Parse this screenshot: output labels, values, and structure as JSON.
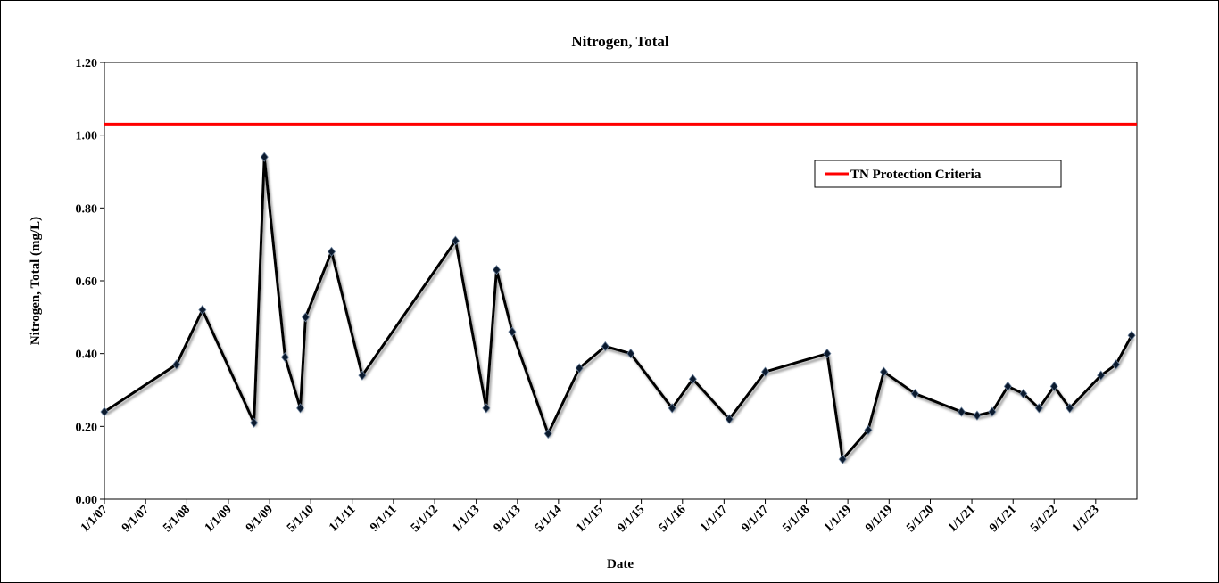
{
  "chart_data": {
    "type": "line",
    "title": "Nitrogen, Total",
    "xlabel": "Date",
    "ylabel": "Nitrogen, Total (mg/L)",
    "x": [
      "2007-01-01",
      "2008-03-01",
      "2008-08-01",
      "2009-06-01",
      "2009-08-01",
      "2009-12-01",
      "2010-03-01",
      "2010-04-01",
      "2010-09-01",
      "2011-03-01",
      "2012-09-01",
      "2013-03-01",
      "2013-05-01",
      "2013-08-01",
      "2014-03-01",
      "2014-09-01",
      "2015-02-01",
      "2015-07-01",
      "2016-03-01",
      "2016-07-01",
      "2017-02-01",
      "2017-09-01",
      "2018-09-01",
      "2018-12-01",
      "2019-05-01",
      "2019-08-01",
      "2020-02-01",
      "2020-11-01",
      "2021-02-01",
      "2021-05-01",
      "2021-08-01",
      "2021-11-01",
      "2022-02-01",
      "2022-05-01",
      "2022-08-01",
      "2023-02-01",
      "2023-05-01",
      "2023-08-01"
    ],
    "series": [
      {
        "color": "#000000",
        "values": [
          0.24,
          0.37,
          0.52,
          0.21,
          0.94,
          0.39,
          0.25,
          0.5,
          0.68,
          0.34,
          0.71,
          0.25,
          0.63,
          0.46,
          0.18,
          0.36,
          0.42,
          0.4,
          0.25,
          0.33,
          0.22,
          0.35,
          0.4,
          0.11,
          0.19,
          0.35,
          0.29,
          0.24,
          0.23,
          0.24,
          0.31,
          0.29,
          0.25,
          0.31,
          0.25,
          0.34,
          0.37,
          0.45
        ]
      }
    ],
    "reference_lines": [
      {
        "name": "TN Protection Criteria",
        "value": 1.03,
        "color": "#ff0000"
      }
    ],
    "legend": "upper right",
    "xlim": [
      "2007-01-01",
      "2023-09-01"
    ],
    "xticks": [
      {
        "value": "2007-01-01",
        "label": "1/1/07"
      },
      {
        "value": "2007-09-01",
        "label": "9/1/07"
      },
      {
        "value": "2008-05-01",
        "label": "5/1/08"
      },
      {
        "value": "2009-01-01",
        "label": "1/1/09"
      },
      {
        "value": "2009-09-01",
        "label": "9/1/09"
      },
      {
        "value": "2010-05-01",
        "label": "5/1/10"
      },
      {
        "value": "2011-01-01",
        "label": "1/1/11"
      },
      {
        "value": "2011-09-01",
        "label": "9/1/11"
      },
      {
        "value": "2012-05-01",
        "label": "5/1/12"
      },
      {
        "value": "2013-01-01",
        "label": "1/1/13"
      },
      {
        "value": "2013-09-01",
        "label": "9/1/13"
      },
      {
        "value": "2014-05-01",
        "label": "5/1/14"
      },
      {
        "value": "2015-01-01",
        "label": "1/1/15"
      },
      {
        "value": "2015-09-01",
        "label": "9/1/15"
      },
      {
        "value": "2016-05-01",
        "label": "5/1/16"
      },
      {
        "value": "2017-01-01",
        "label": "1/1/17"
      },
      {
        "value": "2017-09-01",
        "label": "9/1/17"
      },
      {
        "value": "2018-05-01",
        "label": "5/1/18"
      },
      {
        "value": "2019-01-01",
        "label": "1/1/19"
      },
      {
        "value": "2019-09-01",
        "label": "9/1/19"
      },
      {
        "value": "2020-05-01",
        "label": "5/1/20"
      },
      {
        "value": "2021-01-01",
        "label": "1/1/21"
      },
      {
        "value": "2021-09-01",
        "label": "9/1/21"
      },
      {
        "value": "2022-05-01",
        "label": "5/1/22"
      },
      {
        "value": "2023-01-01",
        "label": "1/1/23"
      }
    ],
    "ylim": [
      0,
      1.2
    ],
    "yticks": [
      {
        "value": 0,
        "label": "0.00"
      },
      {
        "value": 0.2,
        "label": "0.20"
      },
      {
        "value": 0.4,
        "label": "0.40"
      },
      {
        "value": 0.6,
        "label": "0.60"
      },
      {
        "value": 0.8,
        "label": "0.80"
      },
      {
        "value": 1.0,
        "label": "1.00"
      },
      {
        "value": 1.2,
        "label": "1.20"
      }
    ]
  }
}
